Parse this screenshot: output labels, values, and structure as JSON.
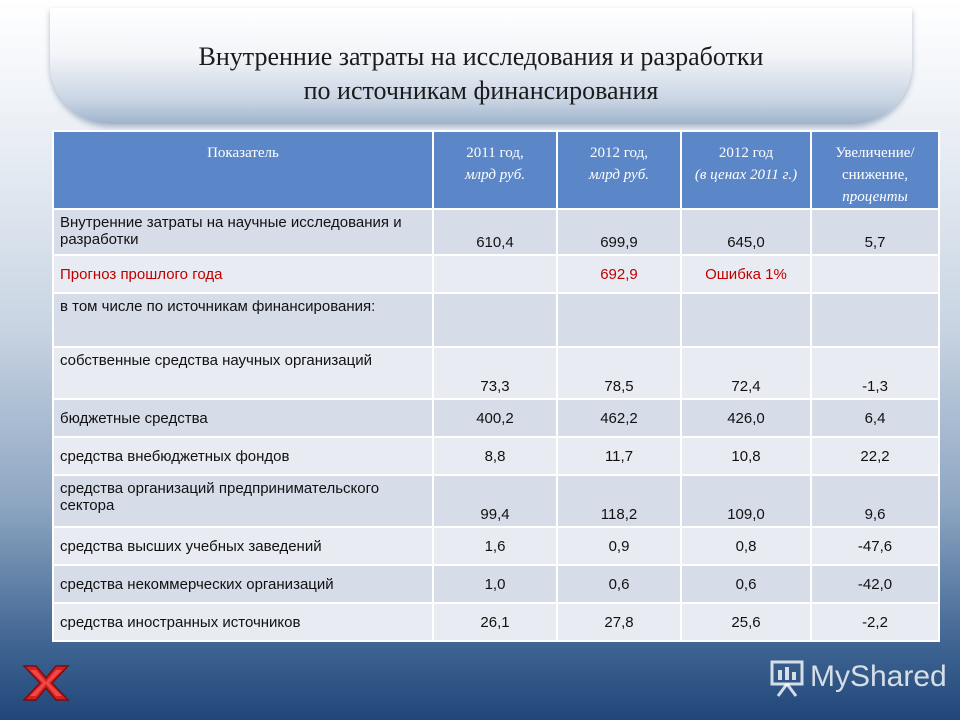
{
  "title": {
    "line1": "Внутренние затраты на исследования и разработки",
    "line2": "по источникам финансирования"
  },
  "table": {
    "headers": [
      {
        "main": "Показатель",
        "sub": ""
      },
      {
        "main": "2011 год,",
        "sub": "млрд руб."
      },
      {
        "main": "2012 год,",
        "sub": "млрд руб."
      },
      {
        "main": "2012 год",
        "sub": "(в ценах 2011 г.)"
      },
      {
        "main": "Увеличение/ снижение,",
        "sub": "проценты"
      }
    ],
    "rows": [
      {
        "label": "Внутренние затраты на научные исследования и разработки",
        "v2011": "610,4",
        "v2012": "699,9",
        "v2012c": "645,0",
        "change": "5,7"
      },
      {
        "label": "Прогноз прошлого года",
        "v2011": "",
        "v2012": "692,9",
        "v2012c": "Ошибка  1%",
        "change": ""
      },
      {
        "label": "в том числе по источникам финансирования:",
        "v2011": "",
        "v2012": "",
        "v2012c": "",
        "change": ""
      },
      {
        "label": "собственные средства научных организаций",
        "v2011": "73,3",
        "v2012": "78,5",
        "v2012c": "72,4",
        "change": "-1,3"
      },
      {
        "label": "бюджетные средства",
        "v2011": "400,2",
        "v2012": "462,2",
        "v2012c": "426,0",
        "change": "6,4"
      },
      {
        "label": "средства внебюджетных фондов",
        "v2011": "8,8",
        "v2012": "11,7",
        "v2012c": "10,8",
        "change": "22,2"
      },
      {
        "label": "средства организаций предпринимательского сектора",
        "v2011": "99,4",
        "v2012": "118,2",
        "v2012c": "109,0",
        "change": "9,6"
      },
      {
        "label": "средства высших учебных заведений",
        "v2011": "1,6",
        "v2012": "0,9",
        "v2012c": "0,8",
        "change": "-47,6"
      },
      {
        "label": "средства некоммерческих организаций",
        "v2011": "1,0",
        "v2012": "0,6",
        "v2012c": "0,6",
        "change": "-42,0"
      },
      {
        "label": "средства иностранных источников",
        "v2011": "26,1",
        "v2012": "27,8",
        "v2012c": "25,6",
        "change": "-2,2"
      }
    ]
  },
  "watermark": {
    "text": "MyShared",
    "icon": "presentation-icon"
  },
  "logo": {
    "icon": "red-x-logo-icon"
  },
  "colors": {
    "header_bg": "#5b86c7",
    "row_bg": "#d6dde9",
    "alert": "#c00000"
  }
}
